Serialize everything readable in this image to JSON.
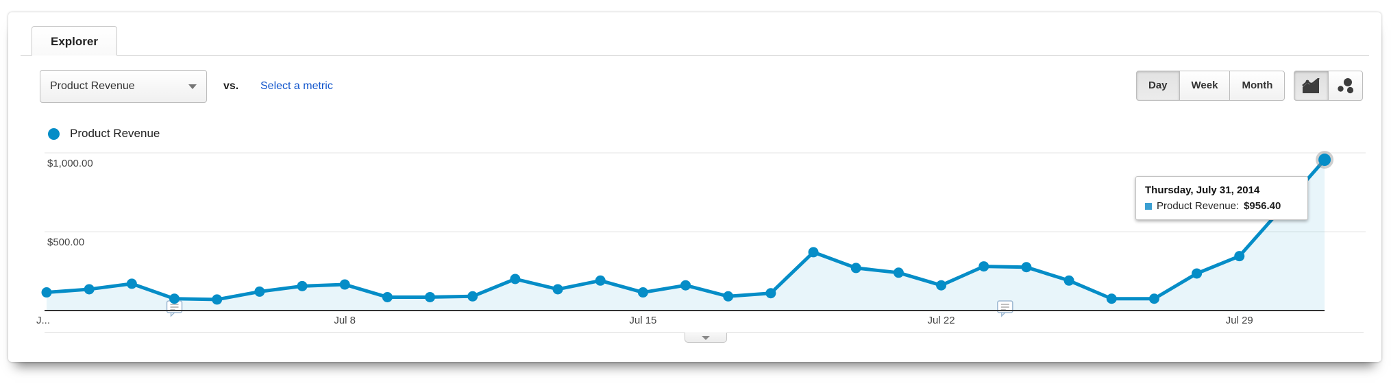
{
  "tab": {
    "label": "Explorer"
  },
  "toolbar": {
    "metric_dropdown": {
      "value": "Product Revenue"
    },
    "vs_label": "vs.",
    "select_metric_link": "Select a metric",
    "granularity": [
      {
        "label": "Day",
        "active": true
      },
      {
        "label": "Week",
        "active": false
      },
      {
        "label": "Month",
        "active": false
      }
    ],
    "chart_type_buttons": [
      {
        "icon": "line-chart-icon",
        "active": true
      },
      {
        "icon": "motion-chart-icon",
        "active": false
      }
    ]
  },
  "legend": {
    "series_label": "Product Revenue",
    "color": "#058dc7"
  },
  "tooltip": {
    "title": "Thursday, July 31, 2014",
    "series_name": "Product Revenue:",
    "value": "$956.40"
  },
  "colors": {
    "accent_blue": "#058dc7",
    "link_blue": "#1155cc",
    "gridline": "#e6e6e6",
    "axis_line": "#333333"
  },
  "chart_data": {
    "type": "line",
    "title": "Product Revenue by day",
    "x": [
      "Jul 1",
      "Jul 2",
      "Jul 3",
      "Jul 4",
      "Jul 5",
      "Jul 6",
      "Jul 7",
      "Jul 8",
      "Jul 9",
      "Jul 10",
      "Jul 11",
      "Jul 12",
      "Jul 13",
      "Jul 14",
      "Jul 15",
      "Jul 16",
      "Jul 17",
      "Jul 18",
      "Jul 19",
      "Jul 20",
      "Jul 21",
      "Jul 22",
      "Jul 23",
      "Jul 24",
      "Jul 25",
      "Jul 26",
      "Jul 27",
      "Jul 28",
      "Jul 29",
      "Jul 30",
      "Jul 31"
    ],
    "series": [
      {
        "name": "Product Revenue",
        "color": "#058dc7",
        "values": [
          115,
          135,
          170,
          75,
          70,
          120,
          155,
          165,
          85,
          85,
          90,
          200,
          135,
          190,
          115,
          160,
          90,
          110,
          370,
          270,
          240,
          160,
          280,
          275,
          190,
          75,
          75,
          235,
          345,
          650,
          956.4
        ]
      }
    ],
    "ylim": [
      0,
      1070
    ],
    "y_gridlines": [
      {
        "value": 500,
        "label": "$500.00"
      },
      {
        "value": 1000,
        "label": "$1,000.00"
      }
    ],
    "x_ticks": [
      {
        "index": 0,
        "label": "J..."
      },
      {
        "index": 7,
        "label": "Jul 8"
      },
      {
        "index": 14,
        "label": "Jul 15"
      },
      {
        "index": 21,
        "label": "Jul 22"
      },
      {
        "index": 28,
        "label": "Jul 29"
      }
    ],
    "annotations": [
      {
        "x_index": 3
      },
      {
        "x_index": 22.5
      }
    ],
    "highlight_index": 30,
    "legend_position": "top-left",
    "grid": "horizontal"
  }
}
